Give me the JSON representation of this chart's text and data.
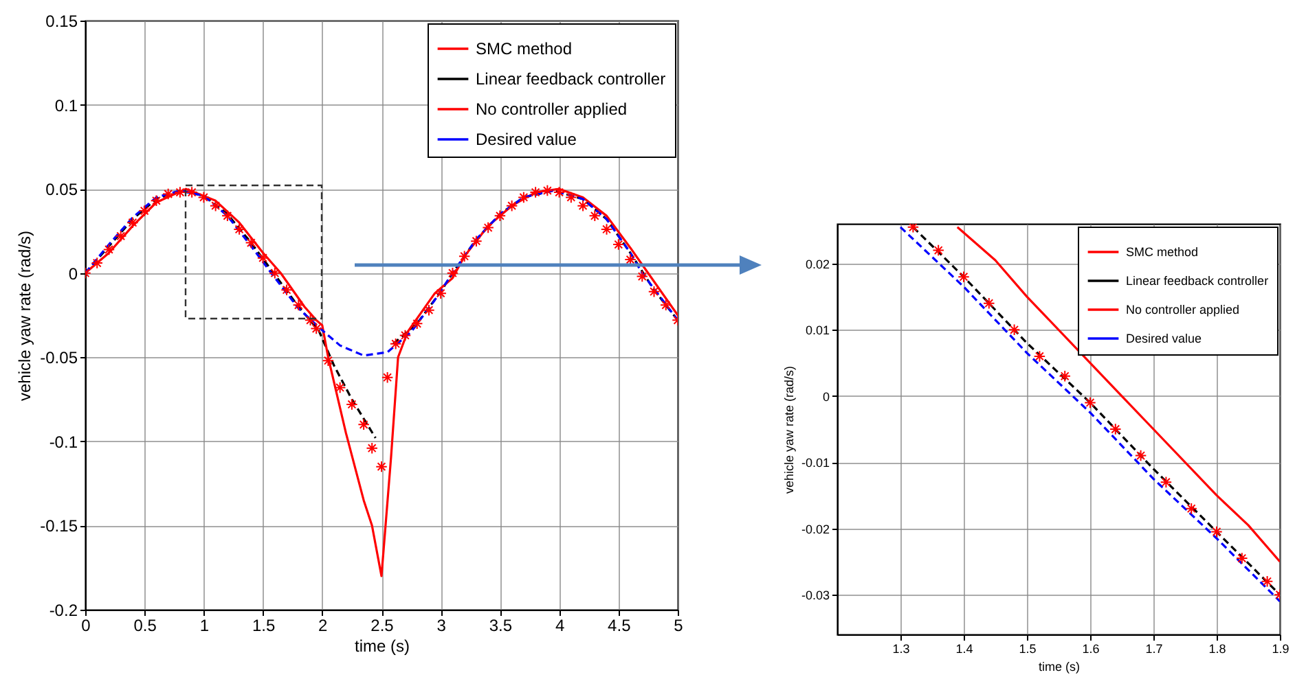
{
  "chart_data": [
    {
      "type": "line",
      "xlabel": "time (s)",
      "ylabel": "vehicle yaw rate (rad/s)",
      "xlim": [
        0,
        5
      ],
      "ylim": [
        -0.2,
        0.15
      ],
      "xticks": [
        0,
        0.5,
        1,
        1.5,
        2,
        2.5,
        3,
        3.5,
        4,
        4.5,
        5
      ],
      "yticks": [
        -0.2,
        -0.15,
        -0.1,
        -0.05,
        0,
        0.05,
        0.1,
        0.15
      ],
      "grid": true,
      "legend": "top right",
      "series": [
        {
          "name": "SMC method",
          "type": "scatter",
          "marker": "cross",
          "color": "#ff0000",
          "x": [
            0,
            0.1,
            0.2,
            0.3,
            0.4,
            0.5,
            0.6,
            0.7,
            0.8,
            0.9,
            1.0,
            1.1,
            1.2,
            1.3,
            1.4,
            1.5,
            1.6,
            1.7,
            1.8,
            1.9,
            1.95,
            2.05,
            2.15,
            2.25,
            2.35,
            2.42,
            2.5,
            2.55,
            2.62,
            2.7,
            2.8,
            2.9,
            3.0,
            3.1,
            3.2,
            3.3,
            3.4,
            3.5,
            3.6,
            3.7,
            3.8,
            3.9,
            4.0,
            4.1,
            4.2,
            4.3,
            4.4,
            4.5,
            4.6,
            4.7,
            4.8,
            4.9,
            5.0
          ],
          "values": [
            0,
            0.006,
            0.014,
            0.022,
            0.03,
            0.037,
            0.043,
            0.047,
            0.048,
            0.048,
            0.045,
            0.04,
            0.034,
            0.026,
            0.018,
            0.009,
            0.0,
            -0.01,
            -0.019,
            -0.028,
            -0.033,
            -0.052,
            -0.068,
            -0.078,
            -0.09,
            -0.104,
            -0.115,
            -0.062,
            -0.042,
            -0.037,
            -0.03,
            -0.022,
            -0.012,
            0.0,
            0.01,
            0.019,
            0.027,
            0.034,
            0.04,
            0.045,
            0.048,
            0.049,
            0.048,
            0.045,
            0.04,
            0.034,
            0.026,
            0.017,
            0.008,
            -0.002,
            -0.011,
            -0.019,
            -0.028
          ]
        },
        {
          "name": "Linear feedback controller",
          "type": "line",
          "line_style": "dashed",
          "color": "#000000",
          "x": [
            0,
            0.2,
            0.4,
            0.6,
            0.8,
            1.0,
            1.2,
            1.4,
            1.6,
            1.8,
            1.97,
            2.1,
            2.25,
            2.45,
            2.5,
            2.6,
            2.8,
            3.0,
            3.1,
            3.3,
            3.5,
            3.7,
            3.95,
            4.2,
            4.4,
            4.6,
            4.8,
            5.0
          ],
          "values": [
            0,
            0.016,
            0.032,
            0.044,
            0.049,
            0.046,
            0.035,
            0.018,
            -0.001,
            -0.02,
            -0.034,
            -0.055,
            -0.075,
            -0.098,
            null,
            -0.042,
            -0.03,
            -0.011,
            0.0,
            0.02,
            0.035,
            0.045,
            0.049,
            0.044,
            0.032,
            0.012,
            -0.01,
            -0.028
          ]
        },
        {
          "name": "No controller applied",
          "type": "line",
          "line_style": "solid",
          "color": "#ff0000",
          "x": [
            0,
            0.2,
            0.4,
            0.6,
            0.85,
            1.1,
            1.3,
            1.5,
            1.65,
            1.85,
            1.95,
            2.0,
            2.05,
            2.2,
            2.35,
            2.42,
            2.5,
            2.58,
            2.64,
            2.72,
            2.85,
            2.95,
            3.1,
            3.2,
            3.4,
            3.6,
            3.8,
            4.0,
            4.2,
            4.4,
            4.6,
            4.75,
            5.0
          ],
          "values": [
            0,
            0.012,
            0.028,
            0.042,
            0.05,
            0.043,
            0.03,
            0.012,
            0.0,
            -0.02,
            -0.028,
            -0.031,
            -0.05,
            -0.095,
            -0.135,
            -0.15,
            -0.18,
            -0.11,
            -0.05,
            -0.035,
            -0.022,
            -0.012,
            -0.003,
            0.01,
            0.028,
            0.04,
            0.048,
            0.05,
            0.045,
            0.034,
            0.015,
            0.0,
            -0.025
          ]
        },
        {
          "name": "Desired value",
          "type": "line",
          "line_style": "dashed",
          "color": "#0000ff",
          "x": [
            0,
            0.2,
            0.4,
            0.6,
            0.8,
            1.0,
            1.2,
            1.4,
            1.57,
            1.8,
            2.0,
            2.15,
            2.35,
            2.55,
            2.75,
            2.95,
            3.1,
            3.3,
            3.5,
            3.7,
            3.95,
            4.2,
            4.4,
            4.6,
            4.7,
            4.85,
            5.0
          ],
          "values": [
            0,
            0.017,
            0.033,
            0.045,
            0.049,
            0.046,
            0.034,
            0.016,
            0.0,
            -0.021,
            -0.034,
            -0.043,
            -0.049,
            -0.047,
            -0.035,
            -0.016,
            0.0,
            0.02,
            0.035,
            0.045,
            0.049,
            0.044,
            0.032,
            0.012,
            0.0,
            -0.014,
            -0.028
          ]
        }
      ]
    },
    {
      "type": "line",
      "xlabel": "time (s)",
      "ylabel": "vehicle yaw rate (rad/s)",
      "xlim": [
        1.2,
        1.9
      ],
      "ylim": [
        -0.036,
        0.026
      ],
      "xticks": [
        1.3,
        1.4,
        1.5,
        1.6,
        1.7,
        1.8,
        1.9
      ],
      "yticks": [
        -0.03,
        -0.02,
        -0.01,
        0,
        0.01,
        0.02
      ],
      "grid": true,
      "legend": "top right",
      "series": [
        {
          "name": "SMC method",
          "type": "scatter",
          "marker": "cross",
          "color": "#ff0000",
          "x": [
            1.32,
            1.36,
            1.4,
            1.44,
            1.48,
            1.52,
            1.56,
            1.6,
            1.64,
            1.68,
            1.72,
            1.76,
            1.8,
            1.84,
            1.88,
            1.9
          ],
          "values": [
            0.0255,
            0.022,
            0.018,
            0.014,
            0.01,
            0.006,
            0.003,
            -0.001,
            -0.005,
            -0.009,
            -0.013,
            -0.017,
            -0.0205,
            -0.0245,
            -0.028,
            -0.03
          ]
        },
        {
          "name": "Linear feedback controller",
          "type": "line",
          "line_style": "dashed",
          "color": "#000000",
          "x": [
            1.32,
            1.4,
            1.5,
            1.6,
            1.7,
            1.8,
            1.9
          ],
          "values": [
            0.0255,
            0.018,
            0.008,
            -0.001,
            -0.011,
            -0.0205,
            -0.03
          ]
        },
        {
          "name": "No controller applied",
          "type": "line",
          "line_style": "solid",
          "color": "#ff0000",
          "x": [
            1.39,
            1.45,
            1.5,
            1.6,
            1.65,
            1.7,
            1.8,
            1.85,
            1.9
          ],
          "values": [
            0.0255,
            0.0205,
            0.015,
            0.005,
            0.0,
            -0.005,
            -0.015,
            -0.0195,
            -0.025
          ]
        },
        {
          "name": "Desired value",
          "type": "line",
          "line_style": "dashed",
          "color": "#0000ff",
          "x": [
            1.3,
            1.4,
            1.5,
            1.6,
            1.7,
            1.8,
            1.9
          ],
          "values": [
            0.0255,
            0.0165,
            0.0065,
            -0.0025,
            -0.0125,
            -0.0215,
            -0.031
          ]
        }
      ]
    }
  ]
}
